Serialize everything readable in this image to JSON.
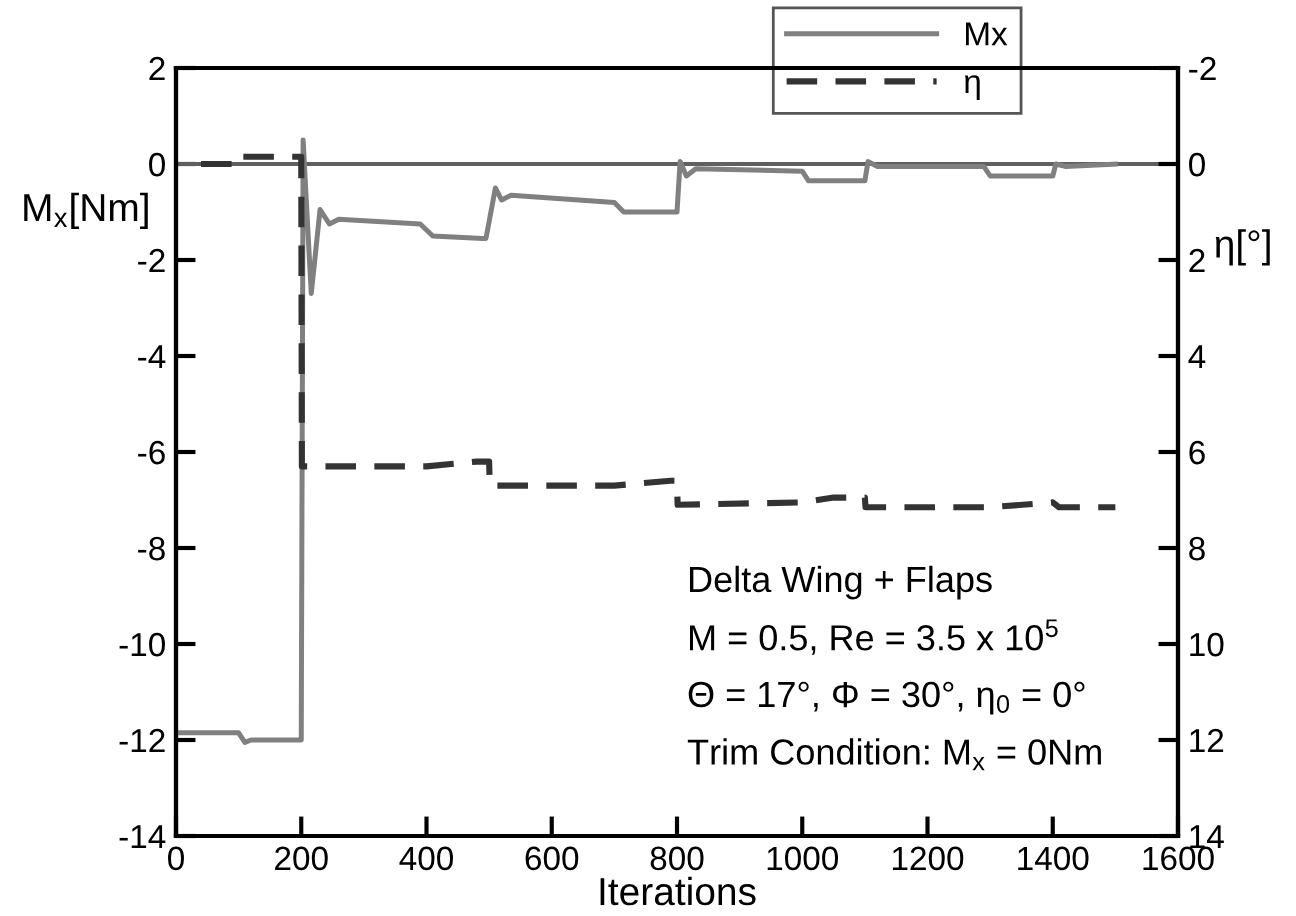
{
  "chart_data": {
    "type": "line",
    "xlabel": "Iterations",
    "ylabel": "M$_{x}$[Nm]",
    "y2label": "η[°]",
    "xlim": [
      0,
      1600
    ],
    "xticks": [
      0,
      200,
      400,
      600,
      800,
      1000,
      1200,
      1400,
      1600
    ],
    "ylim": [
      -14,
      2
    ],
    "yticks": [
      -14,
      -12,
      -10,
      -8,
      -6,
      -4,
      -2,
      0,
      2
    ],
    "y2lim": [
      14,
      -2
    ],
    "y2ticks": [
      -2,
      0,
      2,
      4,
      6,
      8,
      10,
      12,
      14
    ],
    "series": [
      {
        "name": "Mx",
        "color": "#808080",
        "line_style": "solid",
        "x": [
          0,
          100,
          110,
          120,
          200,
          203,
          207,
          216,
          230,
          245,
          260,
          390,
          410,
          490,
          495,
          510,
          520,
          535,
          700,
          715,
          800,
          805,
          815,
          830,
          1000,
          1010,
          1100,
          1105,
          1120,
          1290,
          1300,
          1400,
          1405,
          1420,
          1500
        ],
        "values": [
          -11.85,
          -11.85,
          -12.05,
          -12.0,
          -12.0,
          0.5,
          -0.5,
          -2.7,
          -0.95,
          -1.25,
          -1.15,
          -1.25,
          -1.5,
          -1.55,
          -1.55,
          -0.5,
          -0.75,
          -0.65,
          -0.8,
          -1.0,
          -1.0,
          0.05,
          -0.25,
          -0.1,
          -0.15,
          -0.35,
          -0.35,
          0.05,
          -0.05,
          -0.05,
          -0.25,
          -0.25,
          0.0,
          -0.05,
          0.0
        ]
      },
      {
        "name": "η",
        "color": "#333333",
        "line_style": "dashed",
        "axis": "y2",
        "x": [
          40,
          100,
          101,
          200,
          201,
          400,
          480,
          500,
          501,
          700,
          790,
          800,
          801,
          1000,
          1050,
          1100,
          1101,
          1300,
          1400,
          1410,
          1500
        ],
        "values": [
          0,
          0,
          -0.15,
          -0.15,
          6.3,
          6.3,
          6.2,
          6.2,
          6.7,
          6.7,
          6.6,
          6.6,
          7.1,
          7.05,
          6.95,
          6.95,
          7.15,
          7.15,
          7.05,
          7.15,
          7.15
        ]
      }
    ],
    "ref_lines": [
      {
        "axis": "y",
        "value": 0,
        "color": "#606060"
      }
    ],
    "legend": "top right",
    "grid": false,
    "marker": "none",
    "annotations": [
      "Delta Wing + Flaps",
      "M = 0.5, Re = 3.5 x 10$^{5}$",
      "Θ = 17°, Φ = 30°, η$_{0}$ = 0°",
      "Trim Condition: M$_{x}$ = 0Nm"
    ]
  }
}
